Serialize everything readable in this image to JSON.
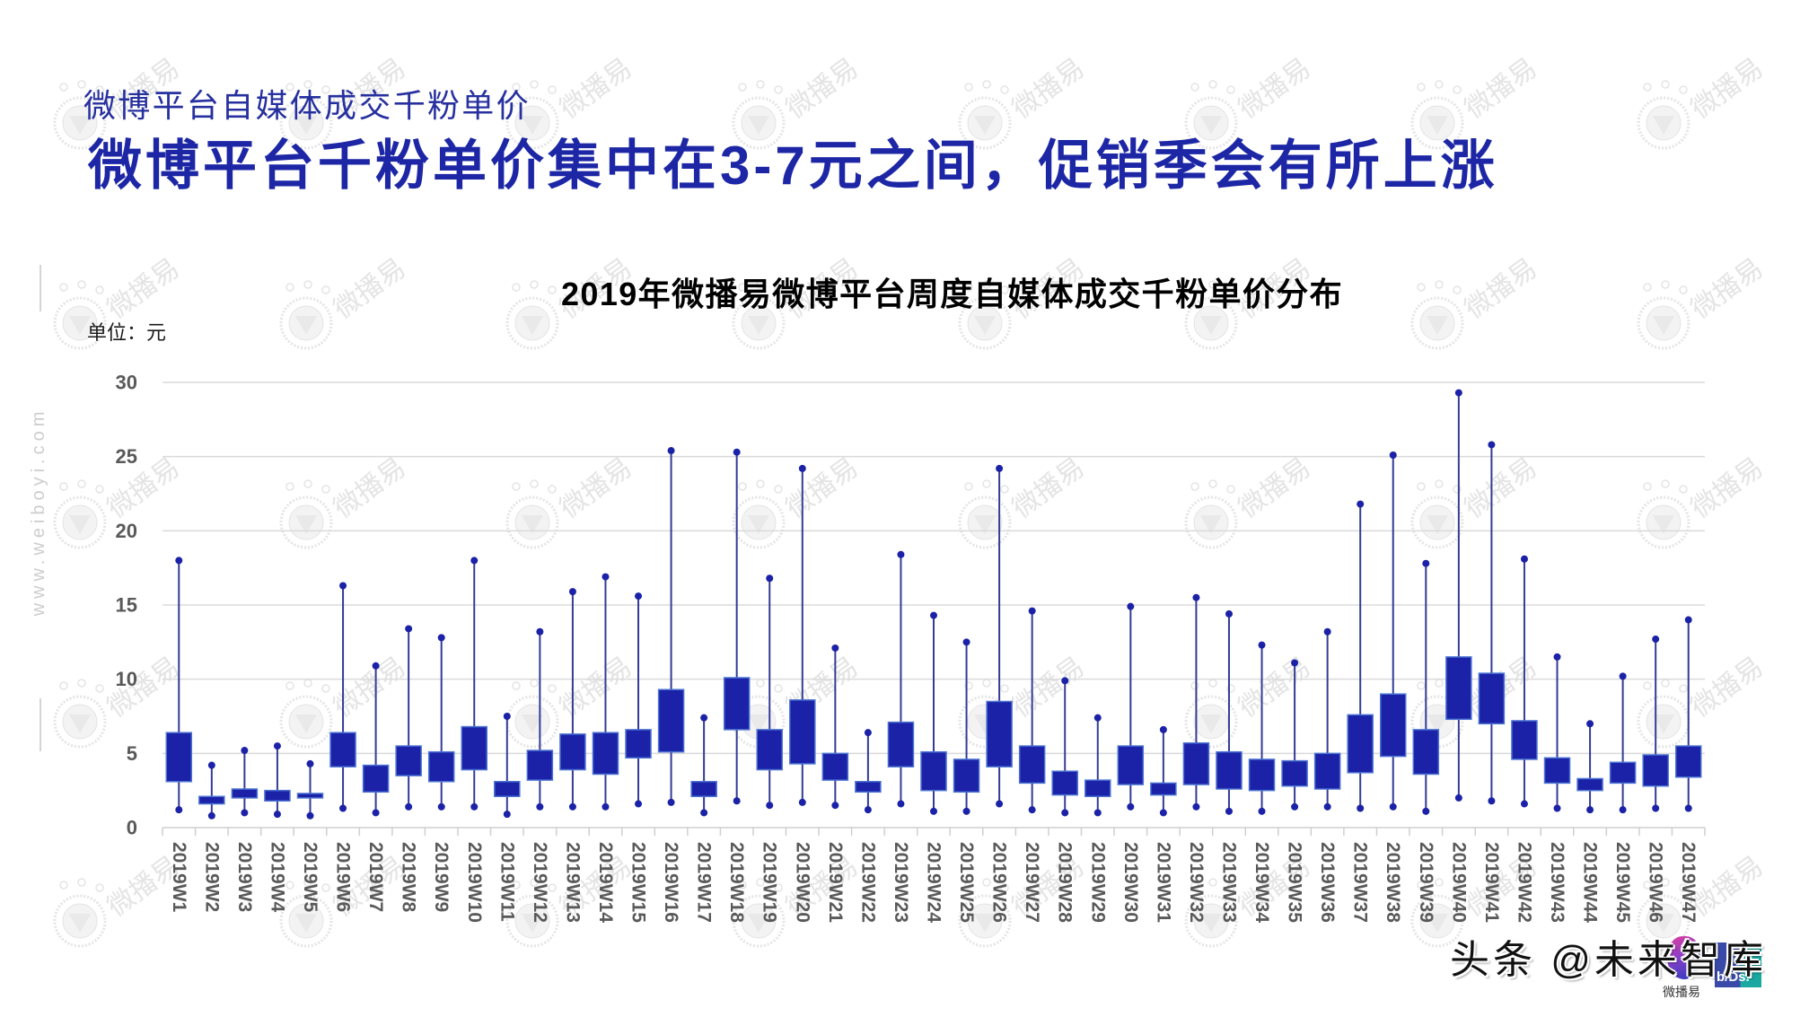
{
  "header": {
    "subtitle": "微博平台自媒体成交千粉单价",
    "title": "微博平台千粉单价集中在3-7元之间，促销季会有所上涨"
  },
  "chart": {
    "title": "2019年微播易微博平台周度自媒体成交千粉单价分布",
    "unit_label": "单位：元"
  },
  "side": {
    "website": "www.weiboyi.com"
  },
  "watermark": {
    "text": "微播易",
    "cols": [
      89,
      341,
      593,
      845,
      1097,
      1349,
      1601,
      1853
    ],
    "rows": [
      137,
      360,
      582,
      804,
      1026
    ],
    "color": "#e4e4e4"
  },
  "overlay": {
    "credit": "头条 @未来智库",
    "logo_caption": "微播易",
    "logo_text": "b/Ds."
  },
  "colors": {
    "title": "#1d27a6",
    "subtitle": "#27309f",
    "box_fill": "#1b22a7",
    "box_stroke": "#4b72d2",
    "whisker": "#343c96",
    "dot": "#1b22a7",
    "grid": "#dadada",
    "axis": "#cfcfcf",
    "tick_text": "#595959"
  },
  "chart_data": {
    "type": "boxplot",
    "title": "2019年微播易微博平台周度自媒体成交千粉单价分布",
    "xlabel": "",
    "ylabel": "单位：元",
    "ylim": [
      0,
      30
    ],
    "yticks": [
      0,
      5,
      10,
      15,
      20,
      25,
      30
    ],
    "grid": true,
    "legend": null,
    "x_label_rotation": 90,
    "categories": [
      "2019W1",
      "2019W2",
      "2019W3",
      "2019W4",
      "2019W5",
      "2019W6",
      "2019W7",
      "2019W8",
      "2019W9",
      "2019W10",
      "2019W11",
      "2019W12",
      "2019W13",
      "2019W14",
      "2019W15",
      "2019W16",
      "2019W17",
      "2019W18",
      "2019W19",
      "2019W20",
      "2019W21",
      "2019W22",
      "2019W23",
      "2019W24",
      "2019W25",
      "2019W26",
      "2019W27",
      "2019W28",
      "2019W29",
      "2019W30",
      "2019W31",
      "2019W32",
      "2019W33",
      "2019W34",
      "2019W35",
      "2019W36",
      "2019W37",
      "2019W38",
      "2019W39",
      "2019W40",
      "2019W41",
      "2019W42",
      "2019W43",
      "2019W44",
      "2019W45",
      "2019W46",
      "2019W47"
    ],
    "stats": {
      "max": [
        18.0,
        4.2,
        5.2,
        5.5,
        4.3,
        16.3,
        10.9,
        13.4,
        12.8,
        18.0,
        7.5,
        13.2,
        15.9,
        16.9,
        15.6,
        25.4,
        7.4,
        25.3,
        16.8,
        24.2,
        12.1,
        6.4,
        18.4,
        14.3,
        12.5,
        24.2,
        14.6,
        9.9,
        7.4,
        14.9,
        6.6,
        15.5,
        14.4,
        12.3,
        11.1,
        13.2,
        21.8,
        25.1,
        17.8,
        29.3,
        25.8,
        18.1,
        11.5,
        7.0,
        10.2,
        12.7,
        14.0
      ],
      "q3": [
        6.4,
        2.1,
        2.6,
        2.5,
        2.3,
        6.4,
        4.2,
        5.5,
        5.1,
        6.8,
        3.1,
        5.2,
        6.3,
        6.4,
        6.6,
        9.3,
        3.1,
        10.1,
        6.6,
        8.6,
        5.0,
        3.1,
        7.1,
        5.1,
        4.6,
        8.5,
        5.5,
        3.8,
        3.2,
        5.5,
        3.0,
        5.7,
        5.1,
        4.6,
        4.5,
        5.0,
        7.6,
        9.0,
        6.6,
        11.5,
        10.4,
        7.2,
        4.7,
        3.3,
        4.4,
        4.9,
        5.5
      ],
      "q1": [
        3.1,
        1.6,
        2.0,
        1.8,
        2.0,
        4.1,
        2.4,
        3.5,
        3.1,
        3.9,
        2.1,
        3.2,
        3.9,
        3.6,
        4.7,
        5.1,
        2.1,
        6.6,
        3.9,
        4.3,
        3.2,
        2.4,
        4.1,
        2.5,
        2.4,
        4.1,
        3.0,
        2.2,
        2.1,
        2.9,
        2.2,
        2.9,
        2.6,
        2.5,
        2.8,
        2.6,
        3.7,
        4.8,
        3.6,
        7.3,
        7.0,
        4.6,
        3.0,
        2.5,
        3.0,
        2.8,
        3.4
      ],
      "min": [
        1.2,
        0.8,
        1.0,
        0.9,
        0.8,
        1.3,
        1.0,
        1.4,
        1.4,
        1.4,
        0.9,
        1.4,
        1.4,
        1.4,
        1.6,
        1.7,
        1.0,
        1.8,
        1.5,
        1.7,
        1.5,
        1.2,
        1.6,
        1.1,
        1.1,
        1.6,
        1.2,
        1.0,
        1.0,
        1.4,
        1.0,
        1.4,
        1.1,
        1.1,
        1.4,
        1.4,
        1.3,
        1.4,
        1.1,
        2.0,
        1.8,
        1.6,
        1.3,
        1.2,
        1.2,
        1.3,
        1.3
      ]
    }
  }
}
